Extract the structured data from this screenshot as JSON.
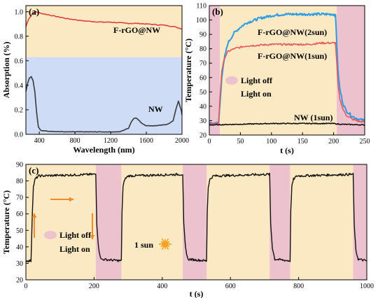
{
  "colors": {
    "light_on": "#fbe9c4",
    "light_off": "#edc2cf",
    "blue_band": "#cfdcf6",
    "absorption_line": "#e0403f",
    "nw_line": "#3a3a3a",
    "sun2_line": "#2a9ce6",
    "sun1_line": "#e8585c",
    "nw1_line": "#111111",
    "arrow": "#f08a2a",
    "sun_icon": "#f2a21d"
  },
  "panels": [
    {
      "label": "(a)",
      "xlabel": "Wavelength (nm)",
      "ylabel": "Absorption (%)",
      "xlim": [
        250,
        2000
      ],
      "ylim": [
        0,
        1.05
      ],
      "xticks": [
        400,
        800,
        1200,
        1600,
        2000
      ],
      "yticks": [
        0.0,
        0.2,
        0.4,
        0.6,
        0.8,
        1.0
      ],
      "ytick_labels": [
        "0.0",
        "0.2",
        "0.4",
        "0.6",
        "0.8",
        "1.0"
      ],
      "annotations": [
        "F-rGO@NW",
        "NW"
      ]
    },
    {
      "label": "(b)",
      "xlabel": "t (s)",
      "ylabel": "Temperature (°C)",
      "xlim": [
        0,
        250
      ],
      "ylim": [
        20,
        110
      ],
      "xticks": [
        0,
        50,
        100,
        150,
        200,
        250
      ],
      "yticks": [
        20,
        30,
        40,
        50,
        60,
        70,
        80,
        90,
        100,
        110
      ],
      "annotations": [
        "F-rGO@NW(2sun)",
        "F-rGO@NW(1sun)",
        "NW (1sun)"
      ],
      "legend": [
        "Light off",
        "Light on"
      ]
    },
    {
      "label": "(c)",
      "xlabel": "t (s)",
      "ylabel": "Temperature (°C)",
      "xlim": [
        0,
        1000
      ],
      "ylim": [
        20,
        90
      ],
      "xticks": [
        0,
        200,
        400,
        600,
        800,
        1000
      ],
      "yticks": [
        20,
        30,
        40,
        50,
        60,
        70,
        80,
        90
      ],
      "annotations": [
        "1 sun"
      ],
      "legend": [
        "Light off",
        "Light on"
      ]
    }
  ],
  "chart_data": [
    {
      "type": "line",
      "panel": "(a)",
      "title": "",
      "xlabel": "Wavelength (nm)",
      "ylabel": "Absorption (%)",
      "xlim": [
        250,
        2000
      ],
      "ylim": [
        0,
        1.05
      ],
      "bands": [
        {
          "kind": "light_on",
          "y_from": 0.63,
          "y_to": 1.05
        },
        {
          "kind": "blue",
          "y_from": 0.0,
          "y_to": 0.63
        }
      ],
      "series": [
        {
          "name": "F-rGO@NW",
          "x": [
            250,
            280,
            320,
            360,
            400,
            500,
            600,
            700,
            800,
            900,
            1000,
            1100,
            1200,
            1300,
            1400,
            1500,
            1600,
            1700,
            1800,
            1900,
            1950,
            2000
          ],
          "y": [
            0.88,
            0.94,
            0.98,
            1.0,
            0.99,
            0.975,
            0.96,
            0.945,
            0.935,
            0.925,
            0.92,
            0.915,
            0.915,
            0.91,
            0.905,
            0.905,
            0.9,
            0.895,
            0.89,
            0.88,
            0.87,
            0.86
          ]
        },
        {
          "name": "NW",
          "x": [
            250,
            270,
            290,
            310,
            330,
            350,
            370,
            390,
            420,
            500,
            700,
            900,
            1100,
            1300,
            1400,
            1430,
            1460,
            1480,
            1500,
            1550,
            1600,
            1700,
            1780,
            1820,
            1860,
            1900,
            1930,
            1960,
            1990,
            2000
          ],
          "y": [
            0.35,
            0.42,
            0.46,
            0.47,
            0.44,
            0.35,
            0.18,
            0.06,
            0.03,
            0.025,
            0.02,
            0.02,
            0.02,
            0.02,
            0.05,
            0.1,
            0.13,
            0.135,
            0.125,
            0.09,
            0.07,
            0.07,
            0.075,
            0.08,
            0.09,
            0.11,
            0.2,
            0.27,
            0.2,
            0.16
          ]
        }
      ]
    },
    {
      "type": "line",
      "panel": "(b)",
      "title": "",
      "xlabel": "t (s)",
      "ylabel": "Temperature (°C)",
      "xlim": [
        0,
        250
      ],
      "ylim": [
        20,
        110
      ],
      "shaded": [
        {
          "kind": "light_off",
          "x_from": 0,
          "x_to": 17
        },
        {
          "kind": "light_on",
          "x_from": 17,
          "x_to": 205
        },
        {
          "kind": "light_off",
          "x_from": 205,
          "x_to": 250
        }
      ],
      "series": [
        {
          "name": "F-rGO@NW(2sun)",
          "x": [
            0,
            10,
            15,
            17,
            20,
            25,
            30,
            40,
            50,
            60,
            80,
            100,
            120,
            140,
            160,
            180,
            200,
            203,
            205,
            207,
            210,
            215,
            220,
            230,
            240,
            250
          ],
          "y": [
            28,
            28,
            28.5,
            40,
            60,
            75,
            84,
            91,
            95,
            98,
            101,
            103,
            104,
            104,
            104,
            104,
            104,
            103,
            85,
            65,
            52,
            42,
            37,
            33,
            31,
            30
          ]
        },
        {
          "name": "F-rGO@NW(1sun)",
          "x": [
            0,
            10,
            15,
            17,
            20,
            25,
            30,
            40,
            50,
            60,
            80,
            100,
            120,
            140,
            160,
            180,
            200,
            203,
            205,
            207,
            210,
            215,
            220,
            230,
            240,
            250
          ],
          "y": [
            28,
            28,
            28.5,
            45,
            65,
            74,
            78,
            80,
            81,
            82,
            82.5,
            83,
            83,
            83,
            83,
            84,
            84,
            84,
            70,
            55,
            45,
            38,
            34,
            31,
            29.5,
            29
          ]
        },
        {
          "name": "NW (1sun)",
          "x": [
            0,
            20,
            50,
            100,
            150,
            200,
            210,
            250
          ],
          "y": [
            27,
            27.2,
            27.5,
            28,
            28,
            28,
            27.5,
            27
          ]
        }
      ]
    },
    {
      "type": "line",
      "panel": "(c)",
      "title": "",
      "xlabel": "t (s)",
      "ylabel": "Temperature (°C)",
      "xlim": [
        0,
        1000
      ],
      "ylim": [
        20,
        90
      ],
      "shaded": [
        {
          "kind": "light_off",
          "x_from": 205,
          "x_to": 280
        },
        {
          "kind": "light_off",
          "x_from": 460,
          "x_to": 530
        },
        {
          "kind": "light_off",
          "x_from": 715,
          "x_to": 775
        },
        {
          "kind": "light_off",
          "x_from": 960,
          "x_to": 1000
        }
      ],
      "series": [
        {
          "name": "",
          "cycles": [
            {
              "on": 17,
              "off": 205,
              "end": 280
            },
            {
              "on": 280,
              "off": 460,
              "end": 530
            },
            {
              "on": 530,
              "off": 715,
              "end": 775
            },
            {
              "on": 775,
              "off": 960,
              "end": 1000
            }
          ],
          "base": 31.5,
          "plateau": 84
        }
      ]
    }
  ]
}
